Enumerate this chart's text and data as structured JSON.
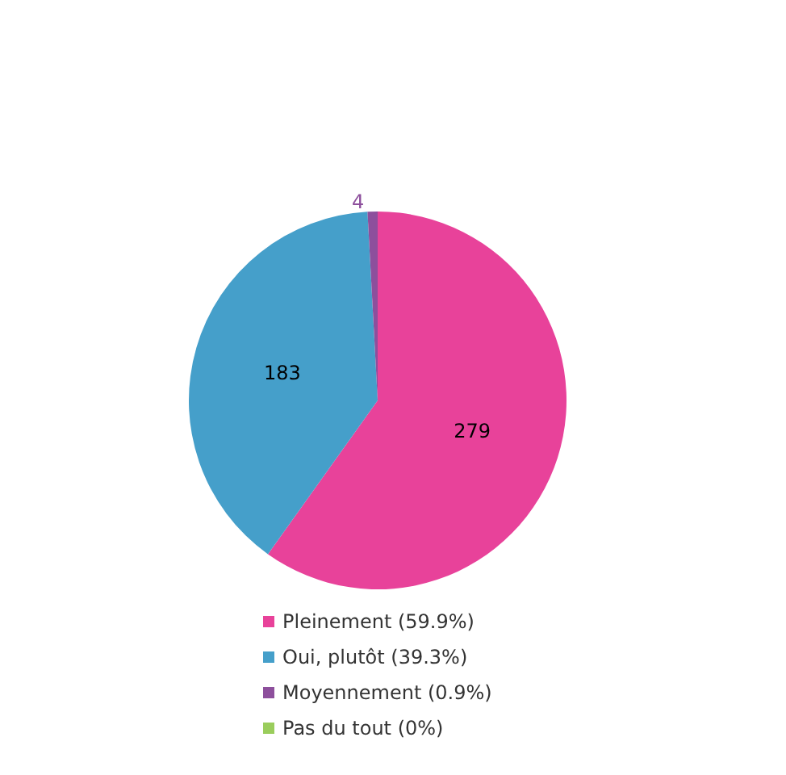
{
  "chart_data": {
    "type": "pie",
    "categories": [
      "Pleinement (59.9%)",
      "Oui, plutôt (39.3%)",
      "Moyennement (0.9%)",
      "Pas du tout (0%)"
    ],
    "values": [
      279,
      183,
      4,
      0
    ],
    "colors": [
      "#e8429a",
      "#459fca",
      "#8d4f9c",
      "#9acd5c"
    ],
    "value_labels": [
      "279",
      "183",
      "4",
      null
    ],
    "legend": "bottom"
  }
}
